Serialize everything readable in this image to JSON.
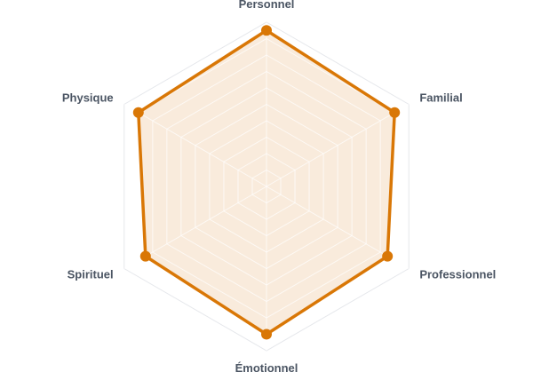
{
  "chart_data": {
    "type": "radar",
    "categories": [
      "Personnel",
      "Familial",
      "Professionnel",
      "Émotionnel",
      "Spirituel",
      "Physique"
    ],
    "series": [
      {
        "values": [
          9.5,
          9,
          8.5,
          9,
          8.5,
          9
        ]
      }
    ],
    "rlim": [
      0,
      10
    ],
    "grid_levels": 10,
    "grid": true,
    "colors": {
      "line": "#d97706",
      "fill": "#f8e8d6",
      "grid": "#e5e7eb",
      "label": "#4b5563"
    }
  }
}
